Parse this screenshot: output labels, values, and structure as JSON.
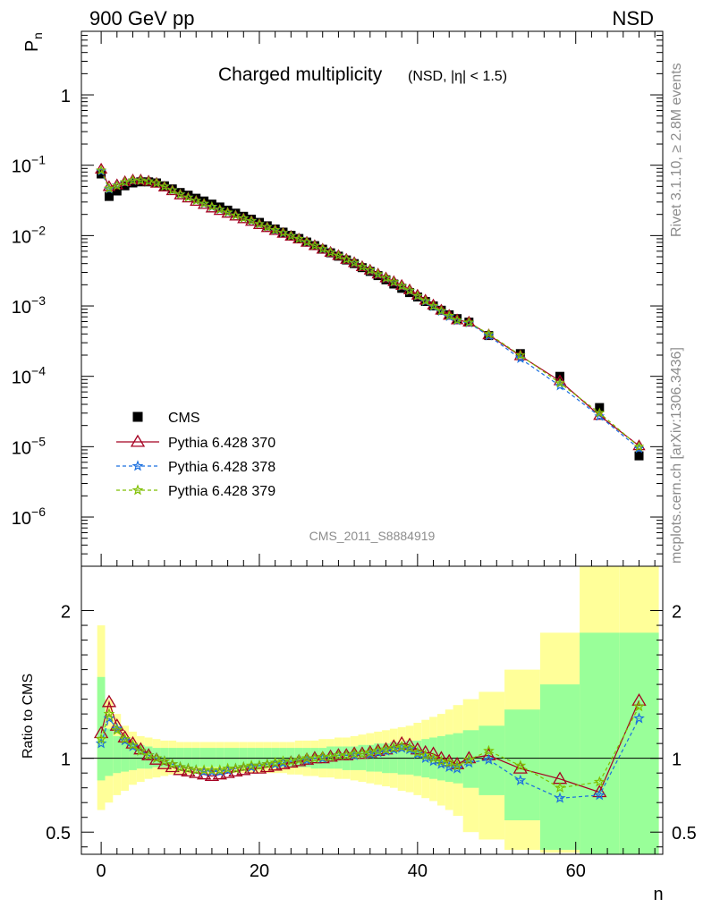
{
  "header": {
    "left": "900 GeV pp",
    "right": "NSD"
  },
  "side_labels": {
    "rivet": "Rivet 3.1.10, ≥ 2.8M events",
    "mcplots": "mcplots.cern.ch [arXiv:1306.3436]"
  },
  "title": {
    "main": "Charged multiplicity",
    "sub": "(NSD, |η| < 1.5)"
  },
  "watermark": "CMS_2011_S8884919",
  "upper": {
    "ylabel_main": "P",
    "ylabel_sub": "n",
    "yscale": "log",
    "ylim": [
      2e-07,
      8
    ],
    "yticks": [
      {
        "base": "1",
        "exp": ""
      },
      {
        "base": "10",
        "exp": "−1"
      },
      {
        "base": "10",
        "exp": "−2"
      },
      {
        "base": "10",
        "exp": "−3"
      },
      {
        "base": "10",
        "exp": "−4"
      },
      {
        "base": "10",
        "exp": "−5"
      },
      {
        "base": "10",
        "exp": "−6"
      }
    ]
  },
  "lower": {
    "ylabel": "Ratio to CMS",
    "ylim": [
      0.35,
      2.3
    ],
    "yticks": [
      "0.5",
      "1",
      "2"
    ]
  },
  "xaxis": {
    "label": "n",
    "xlim": [
      -2.5,
      71
    ],
    "ticks": [
      "0",
      "20",
      "40",
      "60"
    ]
  },
  "legend": [
    {
      "label": "CMS",
      "marker": "square",
      "color": "#000000"
    },
    {
      "label": "Pythia 6.428 370",
      "marker": "triangle",
      "color": "#a50021"
    },
    {
      "label": "Pythia 6.428 378",
      "marker": "star",
      "color": "#1a6fdf"
    },
    {
      "label": "Pythia 6.428 379",
      "marker": "star",
      "color": "#7fbf00"
    }
  ],
  "colors": {
    "band_outer": "#ffff99",
    "band_inner": "#99ff99",
    "series370": "#a50021",
    "series378": "#1a6fdf",
    "series379": "#7fbf00"
  },
  "chart_data": {
    "type": "scatter",
    "x": [
      0,
      1,
      2,
      3,
      4,
      5,
      6,
      7,
      8,
      9,
      10,
      11,
      12,
      13,
      14,
      15,
      16,
      17,
      18,
      19,
      20,
      21,
      22,
      23,
      24,
      25,
      26,
      27,
      28,
      29,
      30,
      31,
      32,
      33,
      34,
      35,
      36,
      37,
      38,
      39,
      40,
      41,
      42,
      43,
      44,
      45,
      46.5,
      49,
      53,
      58,
      63,
      68
    ],
    "cms": [
      0.075,
      0.036,
      0.043,
      0.051,
      0.056,
      0.058,
      0.058,
      0.056,
      0.051,
      0.046,
      0.041,
      0.0375,
      0.034,
      0.031,
      0.028,
      0.0255,
      0.023,
      0.0208,
      0.0188,
      0.0171,
      0.0154,
      0.0138,
      0.0124,
      0.0112,
      0.0101,
      0.0091,
      0.0081,
      0.0072,
      0.0064,
      0.0057,
      0.0051,
      0.0045,
      0.004,
      0.0035,
      0.0031,
      0.0027,
      0.00235,
      0.00205,
      0.00178,
      0.00155,
      0.00134,
      0.00116,
      0.001,
      0.00087,
      0.00075,
      0.00066,
      0.00059,
      0.00038,
      0.00021,
      0.0001,
      3.6e-05,
      7.4e-06
    ],
    "series": [
      {
        "name": "Pythia 6.428 370",
        "ratio": [
          1.17,
          1.38,
          1.22,
          1.14,
          1.1,
          1.06,
          1.02,
          0.99,
          0.96,
          0.94,
          0.92,
          0.91,
          0.9,
          0.89,
          0.88,
          0.89,
          0.9,
          0.91,
          0.92,
          0.93,
          0.93,
          0.94,
          0.95,
          0.96,
          0.97,
          0.98,
          0.99,
          1.0,
          1.0,
          1.01,
          1.02,
          1.02,
          1.03,
          1.03,
          1.04,
          1.05,
          1.06,
          1.08,
          1.1,
          1.09,
          1.06,
          1.04,
          1.03,
          1.0,
          0.98,
          0.96,
          1.0,
          1.02,
          0.93,
          0.86,
          0.77,
          1.39
        ]
      },
      {
        "name": "Pythia 6.428 378",
        "ratio": [
          1.1,
          1.27,
          1.2,
          1.12,
          1.08,
          1.05,
          1.02,
          1.0,
          0.98,
          0.96,
          0.94,
          0.93,
          0.92,
          0.91,
          0.91,
          0.91,
          0.92,
          0.93,
          0.94,
          0.94,
          0.95,
          0.96,
          0.96,
          0.97,
          0.98,
          0.99,
          0.99,
          1.0,
          1.0,
          1.01,
          1.02,
          1.02,
          1.02,
          1.03,
          1.03,
          1.04,
          1.05,
          1.06,
          1.07,
          1.06,
          1.03,
          1.0,
          0.98,
          0.96,
          0.94,
          0.93,
          0.97,
          0.99,
          0.85,
          0.73,
          0.75,
          1.27
        ]
      },
      {
        "name": "Pythia 6.428 379",
        "ratio": [
          1.13,
          1.3,
          1.19,
          1.13,
          1.09,
          1.05,
          1.02,
          1.0,
          0.98,
          0.96,
          0.94,
          0.93,
          0.92,
          0.92,
          0.92,
          0.92,
          0.93,
          0.93,
          0.94,
          0.95,
          0.95,
          0.96,
          0.97,
          0.98,
          0.98,
          0.99,
          1.0,
          1.0,
          1.01,
          1.01,
          1.02,
          1.02,
          1.03,
          1.03,
          1.04,
          1.05,
          1.06,
          1.07,
          1.08,
          1.07,
          1.04,
          1.02,
          1.0,
          0.98,
          0.97,
          0.95,
          0.99,
          1.05,
          0.95,
          0.8,
          0.84,
          1.35
        ]
      }
    ],
    "band_outer": [
      [
        1.9,
        0.65
      ],
      [
        1.4,
        0.7
      ],
      [
        1.3,
        0.75
      ],
      [
        1.22,
        0.78
      ],
      [
        1.18,
        0.82
      ],
      [
        1.15,
        0.84
      ],
      [
        1.14,
        0.86
      ],
      [
        1.13,
        0.87
      ],
      [
        1.12,
        0.88
      ],
      [
        1.12,
        0.89
      ],
      [
        1.11,
        0.89
      ],
      [
        1.11,
        0.89
      ],
      [
        1.11,
        0.9
      ],
      [
        1.11,
        0.9
      ],
      [
        1.11,
        0.9
      ],
      [
        1.11,
        0.9
      ],
      [
        1.11,
        0.9
      ],
      [
        1.11,
        0.9
      ],
      [
        1.11,
        0.9
      ],
      [
        1.11,
        0.9
      ],
      [
        1.11,
        0.9
      ],
      [
        1.11,
        0.9
      ],
      [
        1.11,
        0.9
      ],
      [
        1.11,
        0.9
      ],
      [
        1.11,
        0.89
      ],
      [
        1.12,
        0.89
      ],
      [
        1.12,
        0.88
      ],
      [
        1.12,
        0.88
      ],
      [
        1.13,
        0.87
      ],
      [
        1.13,
        0.87
      ],
      [
        1.14,
        0.86
      ],
      [
        1.14,
        0.86
      ],
      [
        1.15,
        0.85
      ],
      [
        1.16,
        0.84
      ],
      [
        1.17,
        0.83
      ],
      [
        1.18,
        0.82
      ],
      [
        1.19,
        0.81
      ],
      [
        1.2,
        0.8
      ],
      [
        1.21,
        0.78
      ],
      [
        1.22,
        0.77
      ],
      [
        1.24,
        0.75
      ],
      [
        1.26,
        0.73
      ],
      [
        1.28,
        0.71
      ],
      [
        1.3,
        0.68
      ],
      [
        1.33,
        0.65
      ],
      [
        1.36,
        0.61
      ],
      [
        1.4,
        0.5
      ],
      [
        1.45,
        0.45
      ],
      [
        1.6,
        0.38
      ],
      [
        1.85,
        0.36
      ],
      [
        2.3,
        0.35
      ],
      [
        2.3,
        0.35
      ]
    ],
    "band_inner": [
      [
        1.55,
        0.85
      ],
      [
        1.2,
        0.88
      ],
      [
        1.15,
        0.9
      ],
      [
        1.12,
        0.91
      ],
      [
        1.1,
        0.92
      ],
      [
        1.09,
        0.93
      ],
      [
        1.08,
        0.93
      ],
      [
        1.07,
        0.94
      ],
      [
        1.07,
        0.94
      ],
      [
        1.07,
        0.94
      ],
      [
        1.07,
        0.94
      ],
      [
        1.07,
        0.94
      ],
      [
        1.07,
        0.94
      ],
      [
        1.07,
        0.94
      ],
      [
        1.07,
        0.94
      ],
      [
        1.07,
        0.94
      ],
      [
        1.07,
        0.94
      ],
      [
        1.07,
        0.94
      ],
      [
        1.07,
        0.94
      ],
      [
        1.07,
        0.94
      ],
      [
        1.07,
        0.94
      ],
      [
        1.07,
        0.94
      ],
      [
        1.07,
        0.94
      ],
      [
        1.07,
        0.94
      ],
      [
        1.07,
        0.94
      ],
      [
        1.07,
        0.94
      ],
      [
        1.07,
        0.94
      ],
      [
        1.07,
        0.93
      ],
      [
        1.07,
        0.93
      ],
      [
        1.08,
        0.93
      ],
      [
        1.08,
        0.93
      ],
      [
        1.08,
        0.92
      ],
      [
        1.08,
        0.92
      ],
      [
        1.09,
        0.92
      ],
      [
        1.09,
        0.91
      ],
      [
        1.1,
        0.91
      ],
      [
        1.1,
        0.9
      ],
      [
        1.11,
        0.9
      ],
      [
        1.11,
        0.89
      ],
      [
        1.12,
        0.89
      ],
      [
        1.12,
        0.88
      ],
      [
        1.13,
        0.87
      ],
      [
        1.14,
        0.86
      ],
      [
        1.15,
        0.85
      ],
      [
        1.16,
        0.84
      ],
      [
        1.17,
        0.83
      ],
      [
        1.19,
        0.8
      ],
      [
        1.22,
        0.75
      ],
      [
        1.33,
        0.58
      ],
      [
        1.5,
        0.38
      ],
      [
        1.85,
        0.35
      ],
      [
        1.85,
        0.35
      ]
    ]
  }
}
